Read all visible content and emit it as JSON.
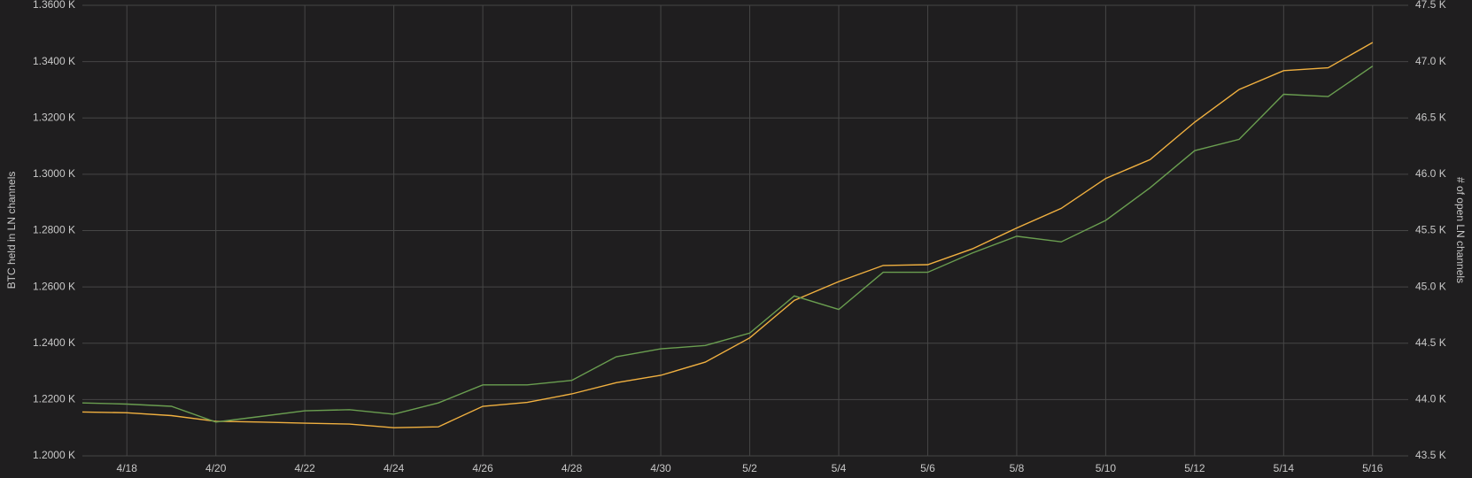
{
  "chart_data": {
    "type": "line",
    "y_label": "BTC held in LN channels",
    "y2_label": "# of open LN channels",
    "x": [
      "4/17",
      "4/18",
      "4/19",
      "4/20",
      "4/21",
      "4/22",
      "4/23",
      "4/24",
      "4/25",
      "4/26",
      "4/27",
      "4/28",
      "4/29",
      "4/30",
      "5/1",
      "5/2",
      "5/3",
      "5/4",
      "5/5",
      "5/6",
      "5/7",
      "5/8",
      "5/9",
      "5/10",
      "5/11",
      "5/12",
      "5/13",
      "5/14",
      "5/15",
      "5/16"
    ],
    "xticks": [
      "4/18",
      "4/20",
      "4/22",
      "4/24",
      "4/26",
      "4/28",
      "4/30",
      "5/2",
      "5/4",
      "5/6",
      "5/8",
      "5/10",
      "5/12",
      "5/14",
      "5/16"
    ],
    "ylim": [
      1200,
      1360
    ],
    "yticks": [
      {
        "value": 1200,
        "label": "1.2000 K"
      },
      {
        "value": 1220,
        "label": "1.2200 K"
      },
      {
        "value": 1240,
        "label": "1.2400 K"
      },
      {
        "value": 1260,
        "label": "1.2600 K"
      },
      {
        "value": 1280,
        "label": "1.2800 K"
      },
      {
        "value": 1300,
        "label": "1.3000 K"
      },
      {
        "value": 1320,
        "label": "1.3200 K"
      },
      {
        "value": 1340,
        "label": "1.3400 K"
      },
      {
        "value": 1360,
        "label": "1.3600 K"
      }
    ],
    "y2lim": [
      43500,
      47500
    ],
    "y2ticks": [
      {
        "value": 43500,
        "label": "43.5 K"
      },
      {
        "value": 44000,
        "label": "44.0 K"
      },
      {
        "value": 44500,
        "label": "44.5 K"
      },
      {
        "value": 45000,
        "label": "45.0 K"
      },
      {
        "value": 45500,
        "label": "45.5 K"
      },
      {
        "value": 46000,
        "label": "46.0 K"
      },
      {
        "value": 46500,
        "label": "46.5 K"
      },
      {
        "value": 47000,
        "label": "47.0 K"
      },
      {
        "value": 47500,
        "label": "47.5 K"
      }
    ],
    "grid": true,
    "series": [
      {
        "color": "#f0b040",
        "axis": "y",
        "values": [
          1215.6,
          1215.3,
          1214.3,
          1212.3,
          1212,
          1211.6,
          1211.3,
          1210,
          1210.3,
          1217.6,
          1219,
          1222,
          1226,
          1228.6,
          1233.3,
          1241.9,
          1255.2,
          1261.9,
          1267.6,
          1267.9,
          1273.5,
          1280.9,
          1287.9,
          1298.5,
          1305.2,
          1318.5,
          1330.1,
          1336.8,
          1337.8,
          1346.8
        ]
      },
      {
        "color": "#6a9e50",
        "axis": "y2",
        "values": [
          43970,
          43960,
          43940,
          43800,
          43850,
          43900,
          43910,
          43870,
          43970,
          44130,
          44130,
          44170,
          44380,
          44450,
          44480,
          44590,
          44920,
          44800,
          45130,
          45130,
          45300,
          45450,
          45400,
          45590,
          45880,
          46210,
          46310,
          46710,
          46690,
          46960
        ]
      }
    ]
  }
}
